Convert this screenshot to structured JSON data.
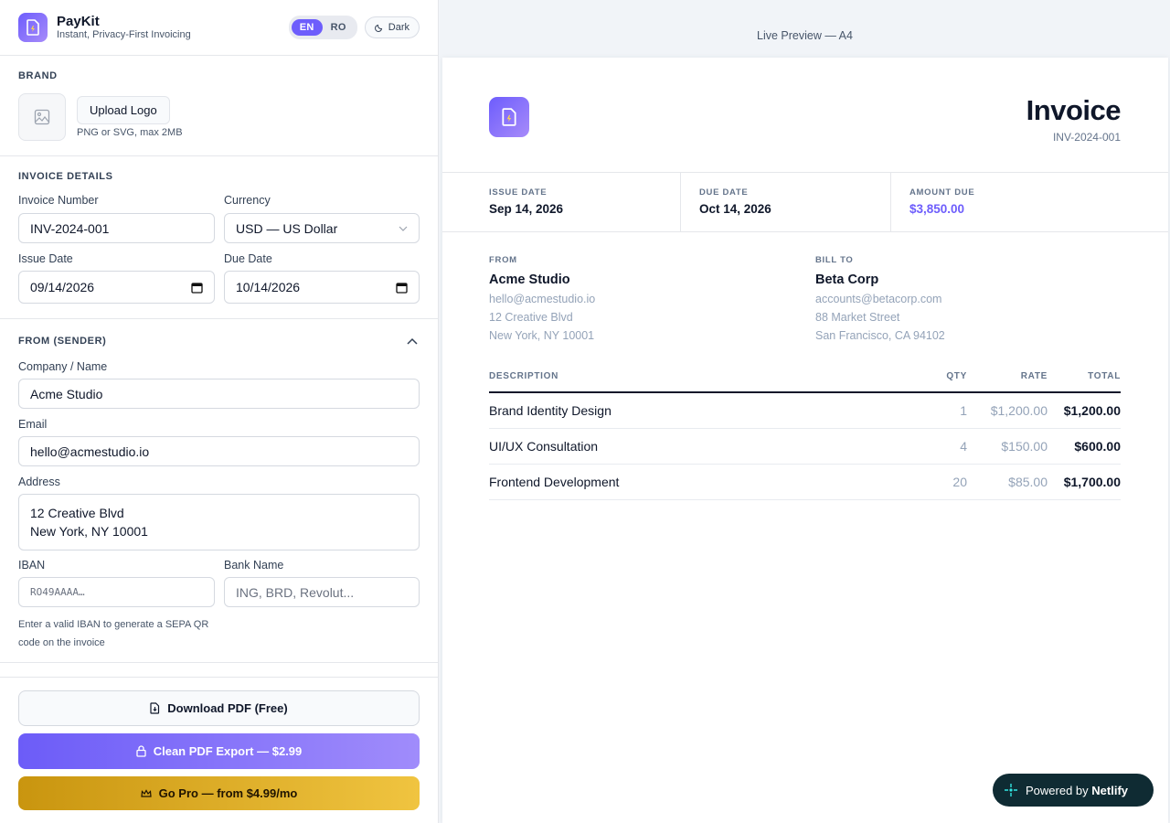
{
  "app": {
    "name": "PayKit",
    "tagline": "Instant, Privacy-First Invoicing"
  },
  "header": {
    "lang_en": "EN",
    "lang_ro": "RO",
    "dark_label": "Dark"
  },
  "brand": {
    "section_title": "BRAND",
    "upload_label": "Upload Logo",
    "upload_hint": "PNG or SVG, max 2MB"
  },
  "invoice_details": {
    "section_title": "INVOICE DETAILS",
    "number_label": "Invoice Number",
    "number_value": "INV-2024-001",
    "currency_label": "Currency",
    "currency_value": "USD — US Dollar",
    "issue_label": "Issue Date",
    "issue_value": "09/14/2026",
    "due_label": "Due Date",
    "due_value": "10/14/2026"
  },
  "sender": {
    "section_title": "FROM (SENDER)",
    "company_label": "Company / Name",
    "company_value": "Acme Studio",
    "email_label": "Email",
    "email_value": "hello@acmestudio.io",
    "address_label": "Address",
    "address_line1": "12 Creative Blvd",
    "address_line2": "New York, NY 10001",
    "iban_label": "IBAN",
    "iban_placeholder": "RO49AAAA…",
    "bank_label": "Bank Name",
    "bank_placeholder": "ING, BRD, Revolut...",
    "iban_hint_line1": "Enter a valid IBAN to generate a SEPA QR",
    "iban_hint_line2": "code on the invoice"
  },
  "actions": {
    "download": "Download PDF (Free)",
    "clean": "Clean PDF Export — $2.99",
    "pro": "Go Pro — from $4.99/mo"
  },
  "preview": {
    "label": "Live Preview — A4",
    "title": "Invoice",
    "number": "INV-2024-001",
    "issue_key": "ISSUE DATE",
    "issue_value": "Sep 14, 2026",
    "due_key": "DUE DATE",
    "due_value": "Oct 14, 2026",
    "amount_key": "AMOUNT DUE",
    "amount_value": "$3,850.00",
    "from": {
      "key": "FROM",
      "name": "Acme Studio",
      "email": "hello@acmestudio.io",
      "line1": "12 Creative Blvd",
      "line2": "New York, NY 10001"
    },
    "bill_to": {
      "key": "BILL TO",
      "name": "Beta Corp",
      "email": "accounts@betacorp.com",
      "line1": "88 Market Street",
      "line2": "San Francisco, CA 94102"
    },
    "columns": {
      "desc": "DESCRIPTION",
      "qty": "QTY",
      "rate": "RATE",
      "total": "TOTAL"
    },
    "items": [
      {
        "desc": "Brand Identity Design",
        "qty": "1",
        "rate": "$1,200.00",
        "total": "$1,200.00"
      },
      {
        "desc": "UI/UX Consultation",
        "qty": "4",
        "rate": "$150.00",
        "total": "$600.00"
      },
      {
        "desc": "Frontend Development",
        "qty": "20",
        "rate": "$85.00",
        "total": "$1,700.00"
      }
    ]
  },
  "badge": {
    "prefix": "Powered by",
    "brand": "Netlify"
  },
  "colors": {
    "accent": "#6d5dfc",
    "gold": "#e0b42a",
    "netlify_bg": "#0f2b33"
  }
}
